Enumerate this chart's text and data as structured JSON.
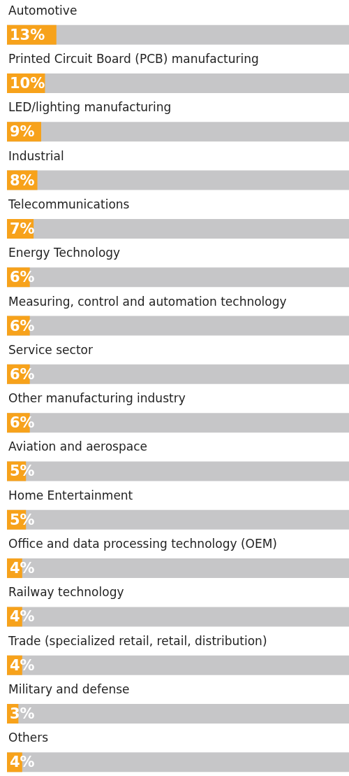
{
  "chart_data": {
    "type": "bar",
    "orientation": "horizontal",
    "categories": [
      "Automotive",
      "Printed Circuit Board (PCB) manufacturing",
      "LED/lighting manufacturing",
      "Industrial",
      "Telecommunications",
      "Energy Technology",
      "Measuring, control and automation technology",
      "Service sector",
      "Other manufacturing industry",
      "Aviation and aerospace",
      "Home Entertainment",
      "Office and data processing technology (OEM)",
      "Railway technology",
      "Trade (specialized retail, retail, distribution)",
      "Military and defense",
      "Others"
    ],
    "values": [
      13,
      10,
      9,
      8,
      7,
      6,
      6,
      6,
      6,
      5,
      5,
      4,
      4,
      4,
      3,
      4
    ],
    "value_labels": [
      "13%",
      "10%",
      "9%",
      "8%",
      "7%",
      "6%",
      "6%",
      "6%",
      "6%",
      "5%",
      "5%",
      "4%",
      "4%",
      "4%",
      "3%",
      "4%"
    ],
    "color": "#f7a21b",
    "xlim": [
      0,
      90
    ]
  }
}
